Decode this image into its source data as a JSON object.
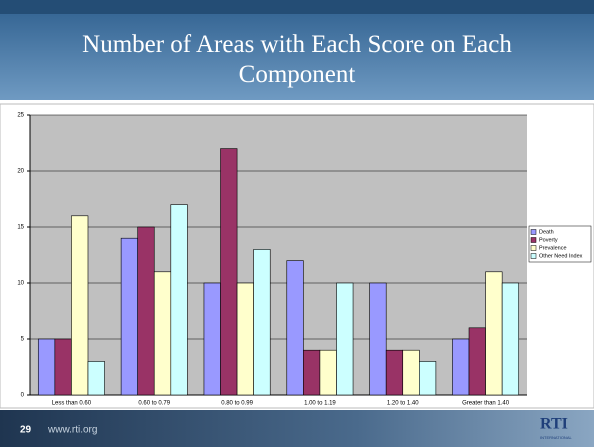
{
  "chart_data": {
    "type": "bar",
    "title": "Number of Areas with Each Score on Each Component",
    "categories": [
      "Less than 0.60",
      "0.60 to 0.79",
      "0.80 to 0.99",
      "1.00 to 1.19",
      "1.20 to 1.40",
      "Greater than 1.40"
    ],
    "series": [
      {
        "name": "Death",
        "color": "#9999ff",
        "values": [
          5,
          14,
          10,
          12,
          10,
          5
        ]
      },
      {
        "name": "Poverty",
        "color": "#993366",
        "values": [
          5,
          15,
          22,
          4,
          4,
          6
        ]
      },
      {
        "name": "Prevalence",
        "color": "#ffffcc",
        "values": [
          16,
          11,
          10,
          4,
          4,
          11
        ]
      },
      {
        "name": "Other Need Index",
        "color": "#ccffff",
        "values": [
          3,
          17,
          13,
          10,
          3,
          10
        ]
      }
    ],
    "ylim": [
      0,
      25
    ],
    "yticks": [
      0,
      5,
      10,
      15,
      20,
      25
    ],
    "grid": true,
    "legend": "right"
  },
  "footer": {
    "page": "29",
    "url": "www.rti.org",
    "logo": "RTI",
    "logo_sub": "INTERNATIONAL"
  }
}
